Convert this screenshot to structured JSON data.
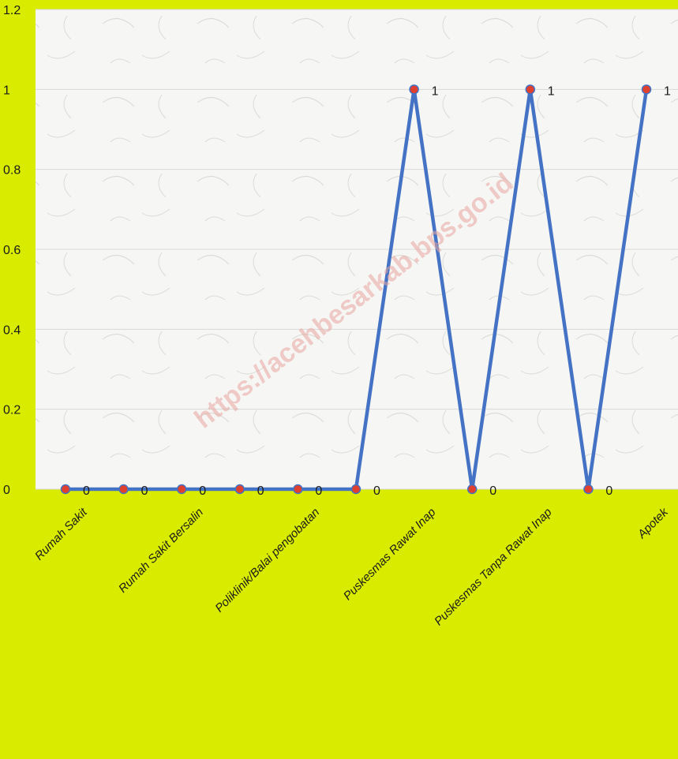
{
  "watermark": "https://acehbesarkab.bps.go.id",
  "colors": {
    "page_background": "#d9ec00",
    "plot_background": "#f6f6f4",
    "line": "#4472c4",
    "marker": "#e0412e",
    "grid": "#d9d9d9"
  },
  "chart_data": {
    "type": "line",
    "title": "",
    "xlabel": "",
    "ylabel": "",
    "ylim": [
      0,
      1.2
    ],
    "yticks": [
      "0",
      "0.2",
      "0.4",
      "0.6",
      "0.8",
      "1",
      "1.2"
    ],
    "grid": true,
    "legend": "none",
    "categories": [
      "Rumah Sakit",
      "",
      "Rumah Sakit Bersalin",
      "",
      "Poliklinik/Balai pengobatan",
      "",
      "Puskesmas Rawat Inap",
      "",
      "Puskesmas Tanpa Rawat Inap",
      "",
      "Apotek"
    ],
    "series": [
      {
        "values": [
          0,
          0,
          0,
          0,
          0,
          0,
          1,
          0,
          1,
          0,
          1
        ],
        "labels": [
          "0",
          "0",
          "0",
          "0",
          "0",
          "0",
          "1",
          "0",
          "1",
          "0",
          "1"
        ]
      }
    ]
  }
}
